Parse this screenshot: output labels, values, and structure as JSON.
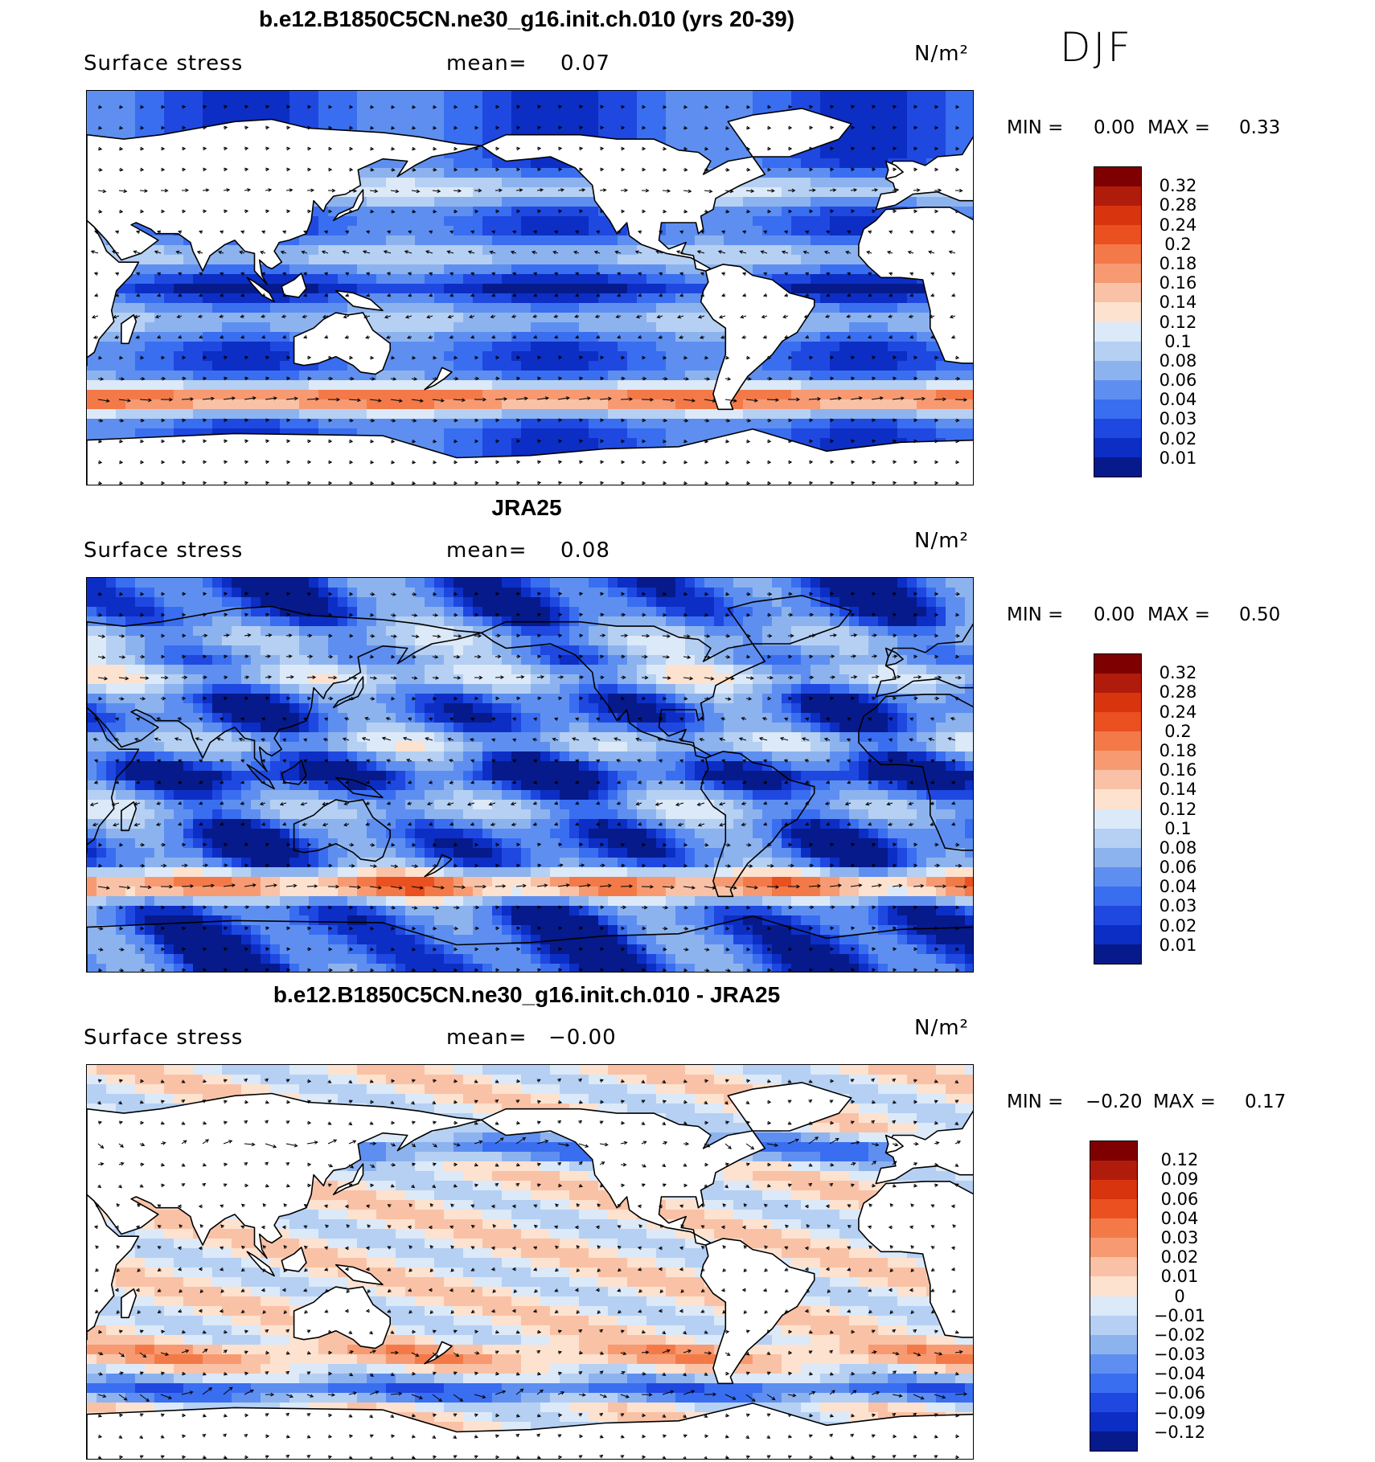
{
  "season": "DJF",
  "units": "N/m²",
  "mean_label": "mean=",
  "min_label": "MIN =",
  "max_label": "MAX =",
  "variable": "Surface stress",
  "panels": [
    {
      "title": "b.e12.B1850C5CN.ne30_g16.init.ch.010 (yrs 20-39)",
      "mean": "0.07",
      "min": "0.00",
      "max": "0.33",
      "ticks": [
        "0.32",
        "0.28",
        "0.24",
        "0.2",
        "0.18",
        "0.16",
        "0.14",
        "0.12",
        "0.1",
        "0.08",
        "0.06",
        "0.04",
        "0.03",
        "0.02",
        "0.01"
      ]
    },
    {
      "title": "JRA25",
      "mean": "0.08",
      "min": "0.00",
      "max": "0.50",
      "ticks": [
        "0.32",
        "0.28",
        "0.24",
        "0.2",
        "0.18",
        "0.16",
        "0.14",
        "0.12",
        "0.1",
        "0.08",
        "0.06",
        "0.04",
        "0.03",
        "0.02",
        "0.01"
      ]
    },
    {
      "title": "b.e12.B1850C5CN.ne30_g16.init.ch.010 - JRA25",
      "mean": "−0.00",
      "min": "−0.20",
      "max": "0.17",
      "ticks": [
        "0.12",
        "0.09",
        "0.06",
        "0.04",
        "0.03",
        "0.02",
        "0.01",
        "0",
        "−0.01",
        "−0.02",
        "−0.03",
        "−0.04",
        "−0.06",
        "−0.09",
        "−0.12"
      ]
    }
  ],
  "colors": {
    "scale": [
      "#7f0000",
      "#b01c0c",
      "#d8350f",
      "#ea5020",
      "#f37a48",
      "#f79a72",
      "#f9c2a6",
      "#fde2cf",
      "#dce9f8",
      "#b5d0f3",
      "#8db3ef",
      "#5e8ff0",
      "#3a6ef0",
      "#1f48e0",
      "#0c2ec4",
      "#061a8c"
    ]
  }
}
